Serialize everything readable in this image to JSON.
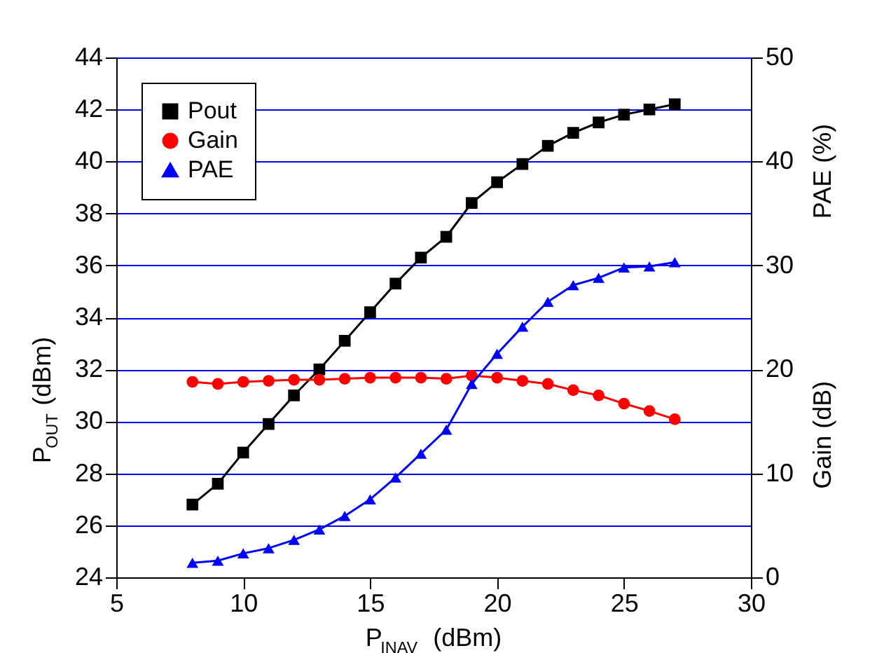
{
  "chart_data": {
    "type": "line",
    "xlabel": "P$_{INAV}$ (dBm)",
    "ylabel": "P$_{OUT}$ (dBm)",
    "y2label": "PAE (%)",
    "y3label": "Gain (dB)",
    "x": [
      8,
      9,
      10,
      11,
      12,
      13,
      14,
      15,
      16,
      17,
      18,
      19,
      20,
      21,
      22,
      23,
      24,
      25,
      26,
      27
    ],
    "series": [
      {
        "name": "Pout",
        "color": "#000000",
        "marker": "square",
        "axis": "y",
        "values": [
          26.8,
          27.6,
          28.8,
          29.9,
          31.0,
          32.0,
          33.1,
          34.2,
          35.3,
          36.3,
          37.1,
          38.4,
          39.2,
          39.9,
          40.6,
          41.1,
          41.5,
          41.8,
          42.0,
          42.2
        ]
      },
      {
        "name": "Gain",
        "color": "#ff0000",
        "marker": "circle",
        "axis": "y2",
        "values": [
          18.8,
          18.6,
          18.8,
          18.9,
          19.0,
          19.0,
          19.1,
          19.2,
          19.2,
          19.2,
          19.1,
          19.4,
          19.2,
          18.9,
          18.6,
          18.0,
          17.5,
          16.7,
          16.0,
          15.2
        ]
      },
      {
        "name": "PAE",
        "color": "#0000ff",
        "marker": "triangle",
        "axis": "y2",
        "values": [
          1.4,
          1.6,
          2.3,
          2.8,
          3.6,
          4.6,
          5.9,
          7.5,
          9.6,
          11.9,
          14.2,
          18.6,
          21.5,
          24.1,
          26.5,
          28.1,
          28.8,
          29.8,
          29.9,
          30.3
        ]
      }
    ],
    "xlim": [
      5,
      30
    ],
    "xticks": [
      5,
      10,
      15,
      20,
      25,
      30
    ],
    "ylim": [
      24,
      44
    ],
    "yticks": [
      24,
      26,
      28,
      30,
      32,
      34,
      36,
      38,
      40,
      42,
      44
    ],
    "y2lim": [
      0,
      50
    ],
    "y2ticks": [
      0,
      10,
      20,
      30,
      40,
      50
    ],
    "grid": "y",
    "legend": "top left",
    "line_style": "solid"
  }
}
